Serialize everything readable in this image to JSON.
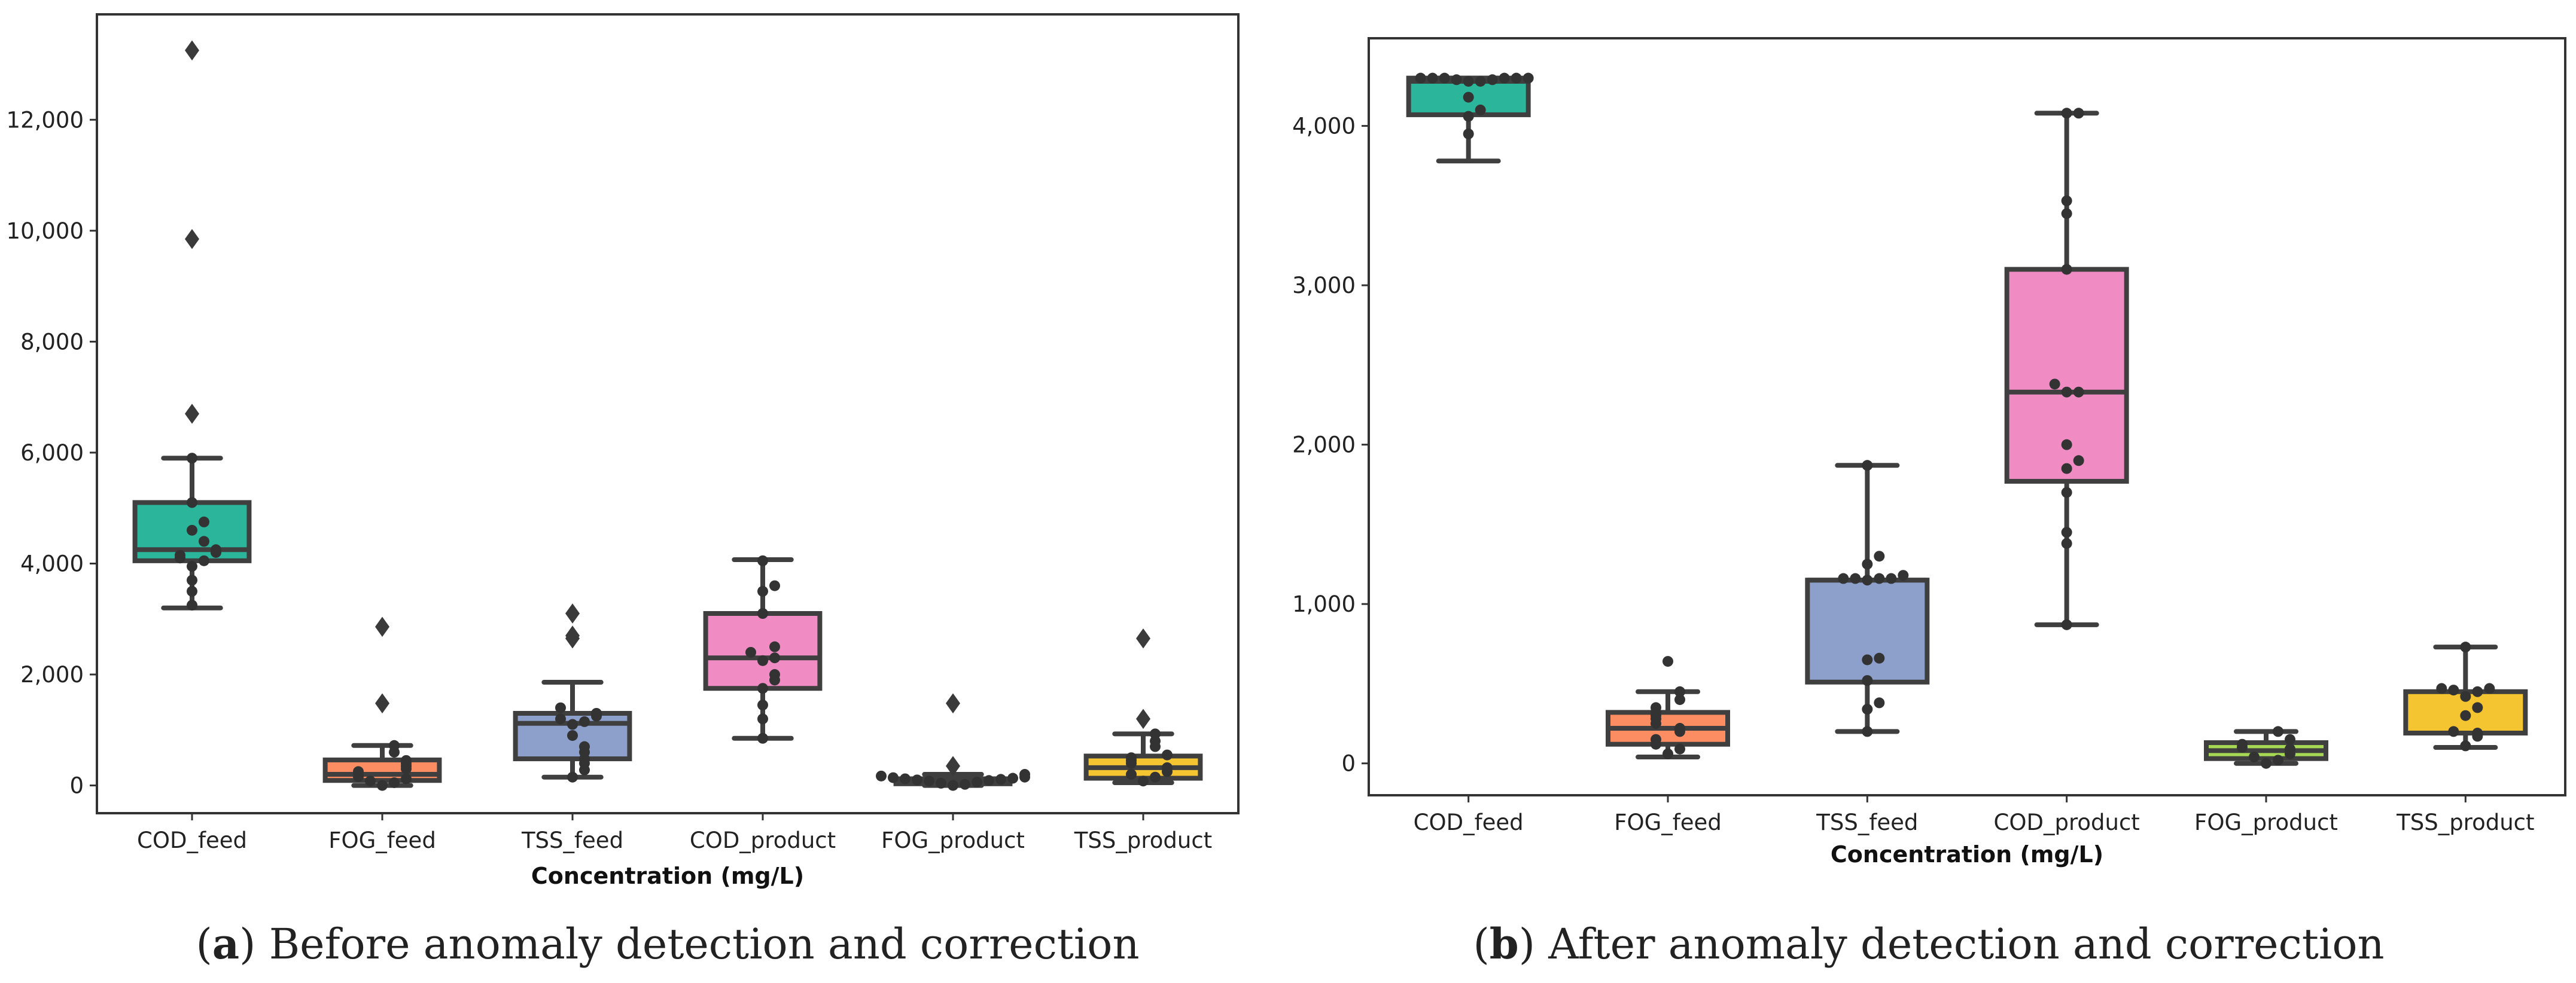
{
  "figure": {
    "panels": [
      {
        "letter": "a",
        "caption": ") Before anomaly detection and correction"
      },
      {
        "letter": "b",
        "caption": ") After anomaly detection and correction"
      }
    ],
    "caption_open": "("
  },
  "chart_data": [
    {
      "type": "box",
      "title": "",
      "xlabel": "Concentration (mg/L)",
      "ylabel": "",
      "ylim": [
        -500,
        13900
      ],
      "yticks": [
        0,
        2000,
        4000,
        6000,
        8000,
        10000,
        12000
      ],
      "ytick_labels": [
        "0",
        "2,000",
        "4,000",
        "6,000",
        "8,000",
        "10,000",
        "12,000"
      ],
      "grid": false,
      "categories": [
        "COD_feed",
        "FOG_feed",
        "TSS_feed",
        "COD_product",
        "FOG_product",
        "TSS_product"
      ],
      "colors": [
        "#2bb59a",
        "#fc8d62",
        "#8da0cb",
        "#f08cc3",
        "#a6d854",
        "#f4c431"
      ],
      "boxes": [
        {
          "whislo": 3200,
          "q1": 4050,
          "med": 4250,
          "q3": 5100,
          "whishi": 5900,
          "outliers": [
            6700,
            9850,
            13250
          ],
          "points": [
            3250,
            3500,
            3700,
            3950,
            4050,
            4100,
            4150,
            4200,
            4250,
            4400,
            4600,
            4750,
            5100,
            5900
          ]
        },
        {
          "whislo": 0,
          "q1": 90,
          "med": 200,
          "q3": 460,
          "whishi": 720,
          "outliers": [
            1480,
            2860
          ],
          "points": [
            0,
            50,
            80,
            120,
            160,
            200,
            250,
            300,
            350,
            400,
            450,
            600,
            720
          ]
        },
        {
          "whislo": 150,
          "q1": 480,
          "med": 1120,
          "q3": 1300,
          "whishi": 1860,
          "outliers": [
            2650,
            2700,
            3100
          ],
          "points": [
            150,
            280,
            400,
            480,
            600,
            700,
            900,
            1100,
            1150,
            1200,
            1250,
            1300,
            1400
          ]
        },
        {
          "whislo": 850,
          "q1": 1750,
          "med": 2300,
          "q3": 3100,
          "whishi": 4070,
          "outliers": [],
          "points": [
            850,
            1200,
            1450,
            1750,
            1900,
            2000,
            2250,
            2300,
            2400,
            2500,
            3100,
            3500,
            3600,
            4050
          ]
        },
        {
          "whislo": 0,
          "q1": 30,
          "med": 80,
          "q3": 120,
          "whishi": 200,
          "outliers": [
            350,
            1480
          ],
          "points": [
            0,
            20,
            40,
            60,
            80,
            90,
            100,
            110,
            120,
            130,
            140,
            150,
            170,
            200
          ]
        },
        {
          "whislo": 50,
          "q1": 130,
          "med": 320,
          "q3": 530,
          "whishi": 930,
          "outliers": [
            1200,
            2650
          ],
          "points": [
            80,
            150,
            200,
            250,
            320,
            400,
            450,
            500,
            550,
            700,
            800,
            930
          ]
        }
      ]
    },
    {
      "type": "box",
      "title": "",
      "xlabel": "Concentration (mg/L)",
      "ylabel": "",
      "ylim": [
        -200,
        4550
      ],
      "yticks": [
        0,
        1000,
        2000,
        3000,
        4000
      ],
      "ytick_labels": [
        "0",
        "1,000",
        "2,000",
        "3,000",
        "4,000"
      ],
      "grid": false,
      "categories": [
        "COD_feed",
        "FOG_feed",
        "TSS_feed",
        "COD_product",
        "FOG_product",
        "TSS_product"
      ],
      "colors": [
        "#2bb59a",
        "#fc8d62",
        "#8da0cb",
        "#f08cc3",
        "#a6d854",
        "#f4c431"
      ],
      "boxes": [
        {
          "whislo": 3780,
          "q1": 4070,
          "med": 4280,
          "q3": 4300,
          "whishi": 4300,
          "outliers": [],
          "points": [
            3950,
            4060,
            4100,
            4180,
            4280,
            4280,
            4290,
            4290,
            4300,
            4300,
            4300,
            4300,
            4300,
            4300
          ]
        },
        {
          "whislo": 40,
          "q1": 120,
          "med": 220,
          "q3": 320,
          "whishi": 450,
          "outliers": [],
          "points": [
            60,
            90,
            120,
            150,
            200,
            220,
            250,
            280,
            300,
            320,
            350,
            400,
            450,
            640
          ]
        },
        {
          "whislo": 200,
          "q1": 510,
          "med": 1150,
          "q3": 1150,
          "whishi": 1870,
          "outliers": [],
          "points": [
            200,
            340,
            380,
            520,
            650,
            660,
            1150,
            1160,
            1160,
            1160,
            1160,
            1180,
            1250,
            1300,
            1870
          ]
        },
        {
          "whislo": 870,
          "q1": 1770,
          "med": 2330,
          "q3": 3100,
          "whishi": 4080,
          "outliers": [],
          "points": [
            870,
            1380,
            1450,
            1700,
            1850,
            1900,
            2000,
            2330,
            2330,
            2380,
            3100,
            3450,
            3530,
            4080,
            4080
          ]
        },
        {
          "whislo": 0,
          "q1": 30,
          "med": 80,
          "q3": 130,
          "whishi": 200,
          "outliers": [],
          "points": [
            0,
            20,
            40,
            60,
            80,
            90,
            100,
            120,
            150,
            200
          ]
        },
        {
          "whislo": 100,
          "q1": 190,
          "med": 190,
          "q3": 450,
          "whishi": 730,
          "outliers": [],
          "points": [
            110,
            170,
            190,
            200,
            300,
            350,
            420,
            450,
            460,
            470,
            470,
            730
          ]
        }
      ]
    }
  ]
}
